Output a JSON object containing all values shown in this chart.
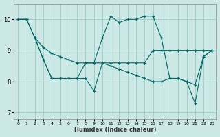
{
  "xlabel": "Humidex (Indice chaleur)",
  "bg_color": "#cce8e4",
  "grid_color": "#99cccc",
  "line_color": "#006666",
  "xlim": [
    -0.5,
    23.5
  ],
  "ylim": [
    6.8,
    10.5
  ],
  "xticks": [
    0,
    1,
    2,
    3,
    4,
    5,
    6,
    7,
    8,
    9,
    10,
    11,
    12,
    13,
    14,
    15,
    16,
    17,
    18,
    19,
    20,
    21,
    22,
    23
  ],
  "yticks": [
    7,
    8,
    9,
    10
  ],
  "line1_x": [
    0,
    1,
    2,
    3,
    4,
    5,
    6,
    7,
    8,
    9,
    10,
    11,
    12,
    13,
    14,
    15,
    16,
    17,
    18,
    19,
    20,
    21,
    22,
    23
  ],
  "line1_y": [
    10.0,
    10.0,
    9.4,
    8.7,
    8.1,
    8.1,
    8.1,
    8.1,
    8.6,
    8.6,
    9.4,
    10.1,
    9.9,
    10.0,
    10.0,
    10.1,
    10.1,
    9.4,
    8.1,
    8.1,
    8.0,
    7.3,
    8.8,
    9.0
  ],
  "line2_x": [
    0,
    1,
    2,
    3,
    4,
    5,
    6,
    7,
    8,
    9,
    10,
    11,
    12,
    13,
    14,
    15,
    16,
    17,
    18,
    19,
    20,
    21,
    22,
    23
  ],
  "line2_y": [
    10.0,
    10.0,
    9.4,
    9.1,
    8.9,
    8.8,
    8.7,
    8.6,
    8.6,
    8.6,
    8.6,
    8.6,
    8.6,
    8.6,
    8.6,
    8.6,
    9.0,
    9.0,
    9.0,
    9.0,
    9.0,
    9.0,
    9.0,
    9.0
  ],
  "line3_x": [
    2,
    3,
    4,
    5,
    6,
    7,
    8,
    9,
    10,
    11,
    12,
    13,
    14,
    15,
    16,
    17,
    18,
    19,
    20,
    21,
    22,
    23
  ],
  "line3_y": [
    9.4,
    8.7,
    8.1,
    8.1,
    8.1,
    8.1,
    8.1,
    7.7,
    8.6,
    8.5,
    8.4,
    8.3,
    8.2,
    8.1,
    8.0,
    8.0,
    8.1,
    8.1,
    8.0,
    7.9,
    8.8,
    9.0
  ]
}
